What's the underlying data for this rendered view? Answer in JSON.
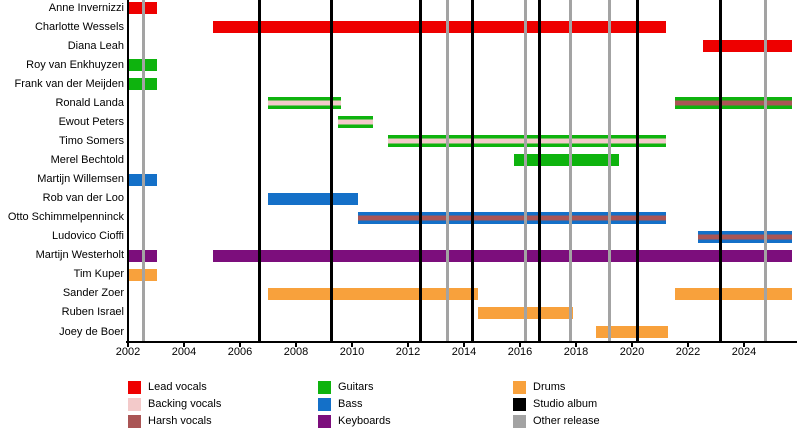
{
  "colors": {
    "lead_vocals": "#ee0000",
    "backing_vocals": "#f3caca",
    "harsh_vocals": "#aa5555",
    "guitars": "#0eb30e",
    "bass": "#1470c8",
    "keyboards": "#7c0e7c",
    "drums": "#f8a13c",
    "studio_album": "#000000",
    "other_release": "#a3a3a3"
  },
  "chart_data": {
    "type": "bar",
    "subtype": "member-timeline-gantt",
    "title": "",
    "xlabel": "",
    "ylabel": "",
    "x_axis": {
      "min": 2002,
      "max": 2025.9,
      "tick_years": [
        2002,
        2004,
        2006,
        2008,
        2010,
        2012,
        2014,
        2016,
        2018,
        2020,
        2022,
        2024
      ]
    },
    "members": [
      {
        "name": "Anne Invernizzi",
        "segments": [
          {
            "start": 2002.0,
            "end": 2003.05,
            "role": "lead_vocals"
          }
        ]
      },
      {
        "name": "Charlotte Wessels",
        "segments": [
          {
            "start": 2005.05,
            "end": 2021.2,
            "role": "lead_vocals"
          }
        ]
      },
      {
        "name": "Diana Leah",
        "segments": [
          {
            "start": 2022.55,
            "end": 2025.7,
            "role": "lead_vocals"
          }
        ]
      },
      {
        "name": "Roy van Enkhuyzen",
        "segments": [
          {
            "start": 2002.0,
            "end": 2003.05,
            "role": "guitars"
          }
        ]
      },
      {
        "name": "Frank van der Meijden",
        "segments": [
          {
            "start": 2002.0,
            "end": 2003.05,
            "role": "guitars"
          }
        ]
      },
      {
        "name": "Ronald Landa",
        "segments": [
          {
            "start": 2007.0,
            "end": 2009.6,
            "role": "guitars",
            "stripe": "backing_vocals"
          },
          {
            "start": 2021.55,
            "end": 2025.7,
            "role": "guitars",
            "stripe": "harsh_vocals"
          }
        ]
      },
      {
        "name": "Ewout Peters",
        "segments": [
          {
            "start": 2009.5,
            "end": 2010.75,
            "role": "guitars",
            "stripe": "backing_vocals"
          }
        ]
      },
      {
        "name": "Timo Somers",
        "segments": [
          {
            "start": 2011.3,
            "end": 2021.2,
            "role": "guitars",
            "stripe": "backing_vocals"
          }
        ]
      },
      {
        "name": "Merel Bechtold",
        "segments": [
          {
            "start": 2015.8,
            "end": 2019.55,
            "role": "guitars"
          }
        ]
      },
      {
        "name": "Martijn Willemsen",
        "segments": [
          {
            "start": 2002.0,
            "end": 2003.05,
            "role": "bass"
          }
        ]
      },
      {
        "name": "Rob van der Loo",
        "segments": [
          {
            "start": 2007.0,
            "end": 2010.2,
            "role": "bass"
          }
        ]
      },
      {
        "name": "Otto Schimmelpenninck",
        "segments": [
          {
            "start": 2010.2,
            "end": 2021.2,
            "role": "bass",
            "stripe": "harsh_vocals"
          }
        ]
      },
      {
        "name": "Ludovico Cioffi",
        "segments": [
          {
            "start": 2022.35,
            "end": 2025.7,
            "role": "bass",
            "stripe": "harsh_vocals"
          }
        ]
      },
      {
        "name": "Martijn Westerholt",
        "segments": [
          {
            "start": 2002.0,
            "end": 2003.05,
            "role": "keyboards"
          },
          {
            "start": 2005.05,
            "end": 2025.7,
            "role": "keyboards"
          }
        ]
      },
      {
        "name": "Tim Kuper",
        "segments": [
          {
            "start": 2002.0,
            "end": 2003.05,
            "role": "drums"
          }
        ]
      },
      {
        "name": "Sander Zoer",
        "segments": [
          {
            "start": 2007.0,
            "end": 2014.5,
            "role": "drums"
          },
          {
            "start": 2021.55,
            "end": 2025.7,
            "role": "drums"
          }
        ]
      },
      {
        "name": "Ruben Israel",
        "segments": [
          {
            "start": 2014.5,
            "end": 2017.9,
            "role": "drums"
          }
        ]
      },
      {
        "name": "Joey de Boer",
        "segments": [
          {
            "start": 2018.7,
            "end": 2021.3,
            "role": "drums"
          }
        ]
      }
    ],
    "events": {
      "studio_albums": [
        2006.7,
        2009.25,
        2012.45,
        2014.3,
        2016.7,
        2020.2,
        2023.15
      ],
      "other_releases": [
        2002.55,
        2013.4,
        2016.2,
        2017.8,
        2019.2,
        2024.75
      ]
    }
  },
  "legend": {
    "entries": [
      {
        "label": "Lead vocals",
        "color": "lead_vocals"
      },
      {
        "label": "Backing vocals",
        "color": "backing_vocals"
      },
      {
        "label": "Harsh vocals",
        "color": "harsh_vocals"
      },
      {
        "label": "Guitars",
        "color": "guitars"
      },
      {
        "label": "Bass",
        "color": "bass"
      },
      {
        "label": "Keyboards",
        "color": "keyboards"
      },
      {
        "label": "Drums",
        "color": "drums"
      },
      {
        "label": "Studio album",
        "color": "studio_album"
      },
      {
        "label": "Other release",
        "color": "other_release"
      }
    ]
  }
}
